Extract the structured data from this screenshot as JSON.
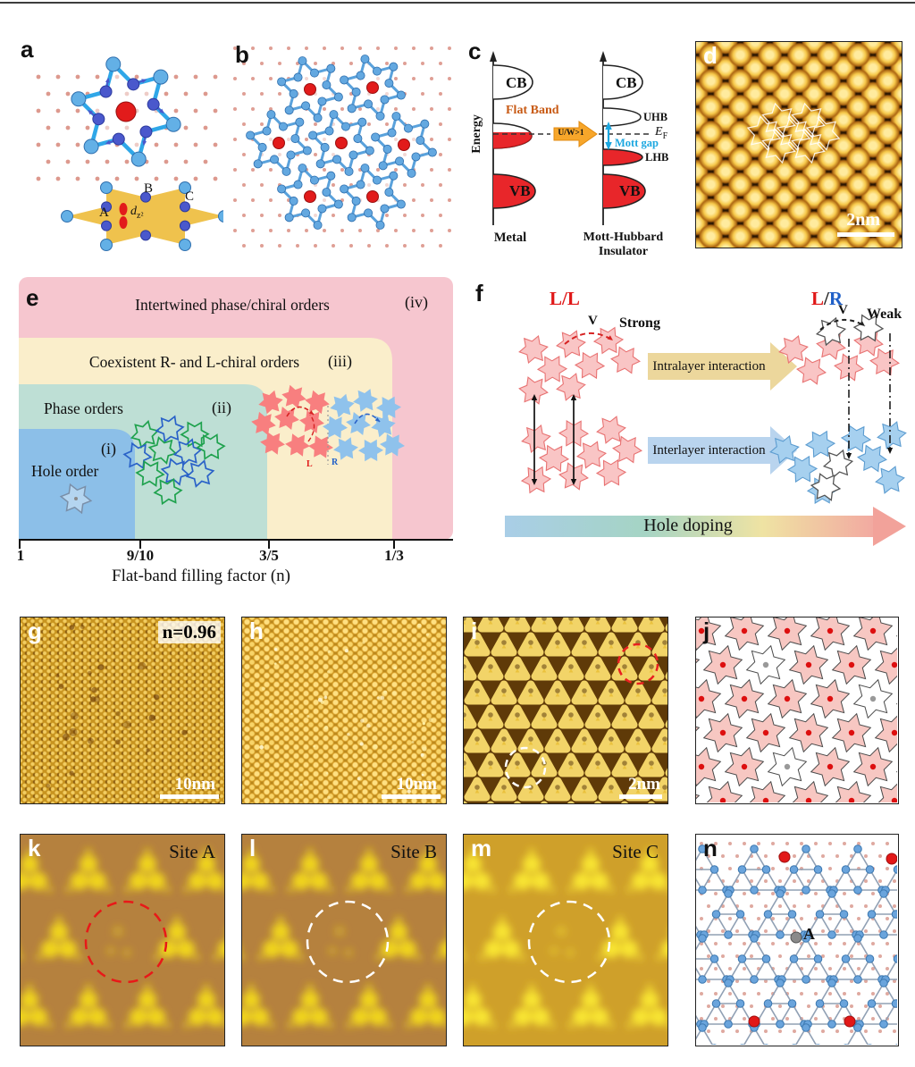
{
  "panels": {
    "a": {
      "label": "a",
      "atom_A": "A",
      "atom_B": "B",
      "atom_C": "C",
      "orbital_d": "d",
      "orbital_sub": "z²"
    },
    "b": {
      "label": "b"
    },
    "c": {
      "label": "c",
      "ylabel": "Energy",
      "cb_left": "CB",
      "flat_band": "Flat Band",
      "vb_left": "VB",
      "transition": "U/W>1",
      "cb_right": "CB",
      "uhb": "UHB",
      "ef_symbol": "E",
      "ef_sub": "F",
      "mott_gap": "Mott gap",
      "lhb": "LHB",
      "vb_right": "VB",
      "left_title": "Metal",
      "right_title": "Mott-Hubbard Insulator"
    },
    "d": {
      "label": "d",
      "scale_bar": "2nm"
    },
    "e": {
      "label": "e",
      "region_iv": "Intertwined phase/chiral orders",
      "numeral_iv": "(iv)",
      "region_iii": "Coexistent R- and L-chiral orders",
      "numeral_iii": "(iii)",
      "region_ii": "Phase orders",
      "numeral_ii": "(ii)",
      "region_i": "Hole order",
      "numeral_i": "(i)",
      "chiral_left": "L",
      "chiral_right": "R",
      "ticks": [
        "1",
        "9/10",
        "3/5",
        "1/3"
      ],
      "xlabel": "Flat-band filling factor (n)"
    },
    "f": {
      "label": "f",
      "left_title": "L/L",
      "right_l": "L",
      "right_sep": "/",
      "right_r": "R",
      "v_left": "V",
      "strong": "Strong",
      "v_right": "V",
      "weak": "Weak",
      "intralayer": "Intralayer interaction",
      "interlayer": "Interlayer interaction",
      "hole_doping": "Hole doping"
    },
    "g": {
      "label": "g",
      "filling": "n=0.96",
      "scale_bar": "10nm"
    },
    "h": {
      "label": "h",
      "scale_bar": "10nm"
    },
    "i": {
      "label": "i",
      "scale_bar": "2nm"
    },
    "j": {
      "label": "j"
    },
    "k": {
      "label": "k",
      "site": "Site A"
    },
    "l": {
      "label": "l",
      "site": "Site B"
    },
    "m": {
      "label": "m",
      "site": "Site C"
    },
    "n": {
      "label": "n",
      "site_label": "A"
    }
  },
  "colors": {
    "region_iv_pink": "#f6c6cf",
    "region_iii_cream": "#faeecb",
    "region_ii_teal": "#bedfd5",
    "region_i_blue": "#8cbfe8",
    "band_red": "#e8262a",
    "mott_cyan": "#1ba7e0",
    "flat_band_orange": "#c85a14",
    "chiral_red": "#e01818",
    "chiral_blue": "#2060c8",
    "star_pink": "#f9c5c5",
    "star_blue": "#a6d0ef",
    "stm_gold": "#c8941f",
    "bond_cyan": "#2fa7e8"
  }
}
